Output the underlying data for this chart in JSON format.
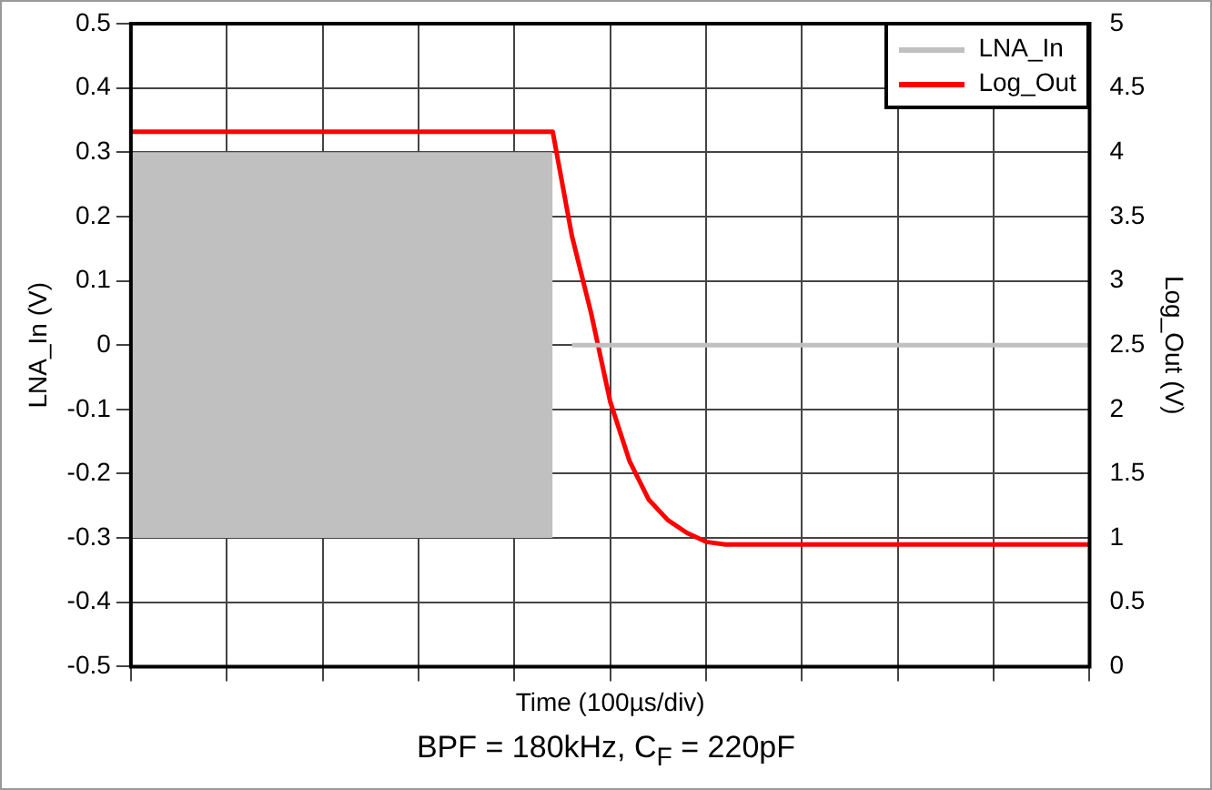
{
  "chart_data": {
    "type": "line",
    "xlabel": "Time (100µs/div)",
    "ylabel": "LNA_In (V)",
    "y2label": "Log_Out (V)",
    "annotations": [
      "BPF = 180kHz, C$_{F}$ = 220pF"
    ],
    "categories": [
      null,
      null,
      null,
      null,
      null,
      null,
      null,
      null,
      null,
      null,
      null,
      null,
      null,
      null,
      null,
      null,
      null,
      null,
      null,
      null,
      null,
      null,
      null,
      null,
      null,
      null,
      null,
      null,
      null,
      null,
      null,
      null,
      null,
      null,
      null,
      null,
      null,
      null,
      null,
      null,
      null,
      null,
      null,
      null,
      null,
      null,
      null,
      null,
      null,
      null,
      null
    ],
    "ylim": [
      -0.5,
      0.5
    ],
    "yticks": [
      -0.5,
      -0.4,
      -0.3,
      -0.2,
      -0.1,
      0,
      0.1,
      0.2,
      0.3,
      0.4,
      0.5
    ],
    "y2lim": [
      0,
      5
    ],
    "y2ticks": [
      0,
      0.5,
      1,
      1.5,
      2,
      2.5,
      3,
      3.5,
      4,
      4.5,
      5
    ],
    "grid": true,
    "legend": "top right",
    "tick_labels": "y",
    "line_style": "solid",
    "marker": "none",
    "series": [
      {
        "name": "LNA_In",
        "color": "#c0c0c0",
        "values": [
          null,
          null,
          null,
          null,
          null,
          null,
          null,
          null,
          null,
          null,
          null,
          null,
          null,
          null,
          null,
          null,
          null,
          null,
          null,
          null,
          null,
          null,
          null,
          0,
          0,
          0,
          0,
          0,
          0,
          0,
          0,
          0,
          0,
          0,
          0,
          0,
          0,
          0,
          0,
          0,
          0,
          0,
          0,
          0,
          0,
          0,
          0,
          0,
          0,
          0,
          0
        ],
        "lower": [
          -0.3,
          -0.3,
          -0.3,
          -0.3,
          -0.3,
          -0.3,
          -0.3,
          -0.3,
          -0.3,
          -0.3,
          -0.3,
          -0.3,
          -0.3,
          -0.3,
          -0.3,
          -0.3,
          -0.3,
          -0.3,
          -0.3,
          -0.3,
          -0.3,
          -0.3,
          -0.3,
          null,
          null,
          null,
          null,
          null,
          null,
          null,
          null,
          null,
          null,
          null,
          null,
          null,
          null,
          null,
          null,
          null,
          null,
          null,
          null,
          null,
          null,
          null,
          null,
          null,
          null,
          null,
          null
        ],
        "upper": [
          0.3,
          0.3,
          0.3,
          0.3,
          0.3,
          0.3,
          0.3,
          0.3,
          0.3,
          0.3,
          0.3,
          0.3,
          0.3,
          0.3,
          0.3,
          0.3,
          0.3,
          0.3,
          0.3,
          0.3,
          0.3,
          0.3,
          0.3,
          null,
          null,
          null,
          null,
          null,
          null,
          null,
          null,
          null,
          null,
          null,
          null,
          null,
          null,
          null,
          null,
          null,
          null,
          null,
          null,
          null,
          null,
          null,
          null,
          null,
          null,
          null,
          null
        ]
      },
      {
        "name": "Log_Out",
        "color": "#ff0000",
        "axis": "y2",
        "values": [
          4.16,
          4.16,
          4.16,
          4.16,
          4.16,
          4.16,
          4.16,
          4.16,
          4.16,
          4.16,
          4.16,
          4.16,
          4.16,
          4.16,
          4.16,
          4.16,
          4.16,
          4.16,
          4.16,
          4.16,
          4.16,
          4.16,
          4.16,
          3.35,
          2.75,
          2.06,
          1.6,
          1.3,
          1.14,
          1.04,
          0.97,
          0.95,
          0.95,
          0.95,
          0.95,
          0.95,
          0.95,
          0.95,
          0.95,
          0.95,
          0.95,
          0.95,
          0.95,
          0.95,
          0.95,
          0.95,
          0.95,
          0.95,
          0.95,
          0.95,
          0.95
        ]
      }
    ]
  }
}
